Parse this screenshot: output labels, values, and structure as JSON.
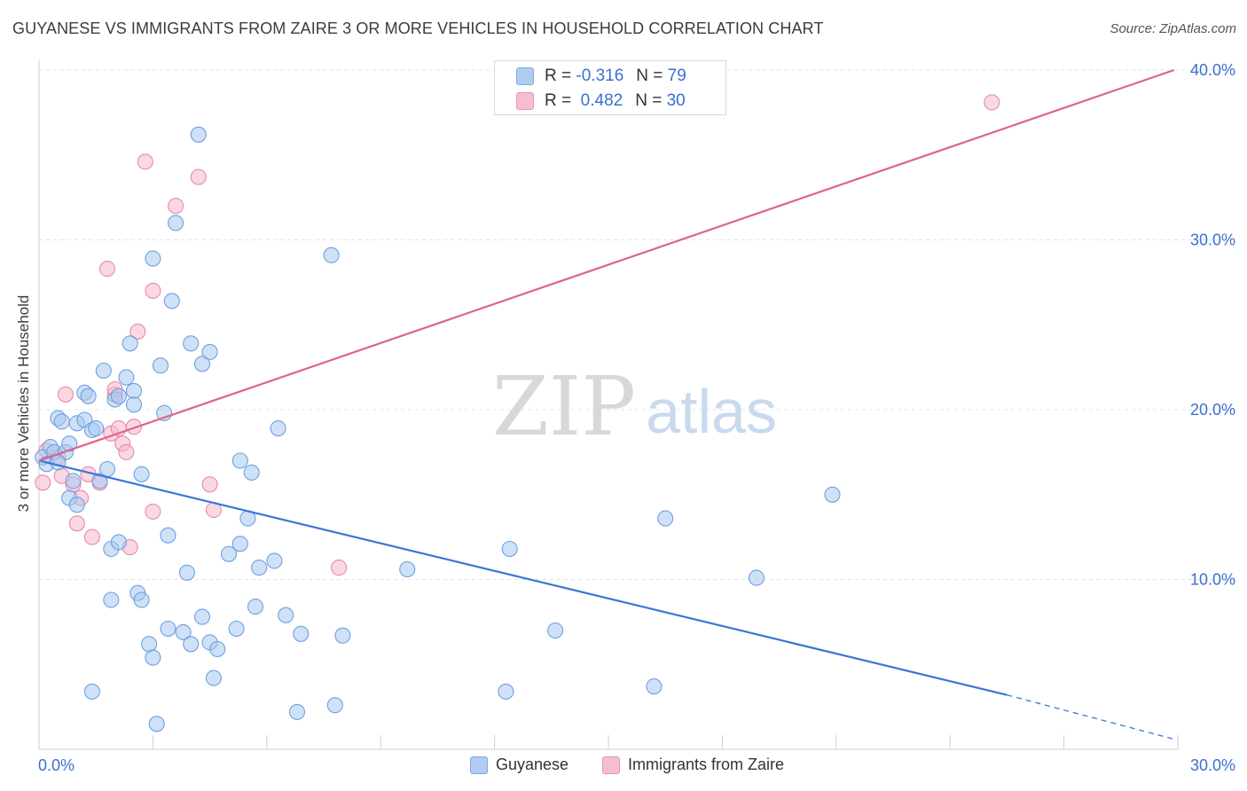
{
  "title": "GUYANESE VS IMMIGRANTS FROM ZAIRE 3 OR MORE VEHICLES IN HOUSEHOLD CORRELATION CHART",
  "source": "Source: ZipAtlas.com",
  "watermark": {
    "zip": "ZIP",
    "atlas": "atlas"
  },
  "stats": [
    {
      "r_label": "R =",
      "r_value": "-0.316",
      "n_label": "N =",
      "n_value": "79",
      "color": "#a8c8f0"
    },
    {
      "r_label": "R =",
      "r_value": "0.482",
      "n_label": "N =",
      "n_value": "30",
      "color": "#f5b8cb"
    }
  ],
  "legend": [
    {
      "label": "Guyanese",
      "color": "#a8c8f0"
    },
    {
      "label": "Immigrants from Zaire",
      "color": "#f5b8cb"
    }
  ],
  "chart_data": {
    "type": "scatter",
    "title": "GUYANESE VS IMMIGRANTS FROM ZAIRE 3 OR MORE VEHICLES IN HOUSEHOLD CORRELATION CHART",
    "xlabel": "",
    "ylabel": "3 or more Vehicles in Household",
    "xlim": [
      0,
      30
    ],
    "ylim": [
      0,
      40
    ],
    "x_tick_labels": [
      "0.0%",
      "30.0%"
    ],
    "y_tick_values": [
      10,
      20,
      30,
      40
    ],
    "y_tick_labels": [
      "10.0%",
      "20.0%",
      "30.0%",
      "40.0%"
    ],
    "grid": true,
    "legend_position": "bottom",
    "series": [
      {
        "name": "Guyanese",
        "color": "#a8c8f0",
        "stroke": "#6f9fe0",
        "line_color": "#3a77d4",
        "trend": {
          "x_start": 0,
          "y_start": 17.0,
          "x_end": 25.5,
          "y_end": 3.2,
          "x_dash_end": 29.9,
          "y_dash_end": 0.6
        },
        "points": [
          [
            0.1,
            17.2
          ],
          [
            0.2,
            16.8
          ],
          [
            0.3,
            17.8
          ],
          [
            0.4,
            17.5
          ],
          [
            0.5,
            19.5
          ],
          [
            0.6,
            19.3
          ],
          [
            0.7,
            17.5
          ],
          [
            0.8,
            18.0
          ],
          [
            0.8,
            14.8
          ],
          [
            0.9,
            15.8
          ],
          [
            1.0,
            19.2
          ],
          [
            1.0,
            14.4
          ],
          [
            1.2,
            21.0
          ],
          [
            1.2,
            19.4
          ],
          [
            1.3,
            20.8
          ],
          [
            1.4,
            18.8
          ],
          [
            1.5,
            18.9
          ],
          [
            1.6,
            15.8
          ],
          [
            1.7,
            22.3
          ],
          [
            1.8,
            16.5
          ],
          [
            1.9,
            11.8
          ],
          [
            1.9,
            8.8
          ],
          [
            2.0,
            20.6
          ],
          [
            2.1,
            20.8
          ],
          [
            2.1,
            12.2
          ],
          [
            2.3,
            21.9
          ],
          [
            2.4,
            23.9
          ],
          [
            2.5,
            21.1
          ],
          [
            2.5,
            20.3
          ],
          [
            2.6,
            9.2
          ],
          [
            2.7,
            8.8
          ],
          [
            2.7,
            16.2
          ],
          [
            2.9,
            6.2
          ],
          [
            3.0,
            5.4
          ],
          [
            3.0,
            28.9
          ],
          [
            3.1,
            1.5
          ],
          [
            3.2,
            22.6
          ],
          [
            3.3,
            19.8
          ],
          [
            3.4,
            12.6
          ],
          [
            3.4,
            7.1
          ],
          [
            3.5,
            26.4
          ],
          [
            3.6,
            31.0
          ],
          [
            3.8,
            6.9
          ],
          [
            3.9,
            10.4
          ],
          [
            4.0,
            6.2
          ],
          [
            4.0,
            23.9
          ],
          [
            4.2,
            36.2
          ],
          [
            4.3,
            22.7
          ],
          [
            4.3,
            7.8
          ],
          [
            4.5,
            6.3
          ],
          [
            4.5,
            23.4
          ],
          [
            4.6,
            4.2
          ],
          [
            4.7,
            5.9
          ],
          [
            5.0,
            11.5
          ],
          [
            5.2,
            7.1
          ],
          [
            5.3,
            12.1
          ],
          [
            5.3,
            17.0
          ],
          [
            5.5,
            13.6
          ],
          [
            5.6,
            16.3
          ],
          [
            5.7,
            8.4
          ],
          [
            5.8,
            10.7
          ],
          [
            6.2,
            11.1
          ],
          [
            6.3,
            18.9
          ],
          [
            6.5,
            7.9
          ],
          [
            6.8,
            2.2
          ],
          [
            6.9,
            6.8
          ],
          [
            7.7,
            29.1
          ],
          [
            7.8,
            2.6
          ],
          [
            8.0,
            6.7
          ],
          [
            9.7,
            10.6
          ],
          [
            12.3,
            3.4
          ],
          [
            12.4,
            11.8
          ],
          [
            13.6,
            7.0
          ],
          [
            16.2,
            3.7
          ],
          [
            16.5,
            13.6
          ],
          [
            18.9,
            10.1
          ],
          [
            20.9,
            15.0
          ],
          [
            1.4,
            3.4
          ],
          [
            0.5,
            16.9
          ]
        ]
      },
      {
        "name": "Immigrants from Zaire",
        "color": "#f5b8cb",
        "stroke": "#e88aa8",
        "line_color": "#e0628c",
        "trend": {
          "x_start": 0,
          "y_start": 17.0,
          "x_end": 29.9,
          "y_end": 40.0
        },
        "points": [
          [
            0.1,
            15.7
          ],
          [
            0.2,
            17.6
          ],
          [
            0.5,
            17.2
          ],
          [
            0.7,
            20.9
          ],
          [
            0.9,
            15.6
          ],
          [
            1.0,
            13.3
          ],
          [
            1.1,
            14.8
          ],
          [
            1.3,
            16.2
          ],
          [
            1.4,
            12.5
          ],
          [
            1.6,
            15.7
          ],
          [
            1.8,
            28.3
          ],
          [
            1.9,
            18.6
          ],
          [
            2.0,
            20.9
          ],
          [
            2.0,
            21.2
          ],
          [
            2.1,
            18.9
          ],
          [
            2.2,
            18.0
          ],
          [
            2.3,
            17.5
          ],
          [
            2.4,
            11.9
          ],
          [
            2.5,
            19.0
          ],
          [
            2.6,
            24.6
          ],
          [
            2.8,
            34.6
          ],
          [
            3.0,
            14.0
          ],
          [
            3.0,
            27.0
          ],
          [
            3.6,
            32.0
          ],
          [
            4.2,
            33.7
          ],
          [
            4.5,
            15.6
          ],
          [
            4.6,
            14.1
          ],
          [
            7.9,
            10.7
          ],
          [
            25.1,
            38.1
          ],
          [
            0.6,
            16.1
          ]
        ]
      }
    ]
  }
}
